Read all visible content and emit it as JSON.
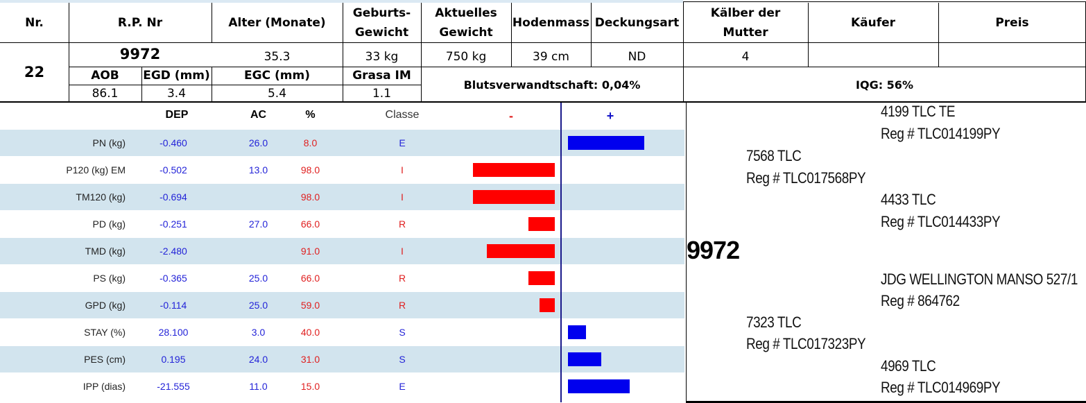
{
  "header": {
    "nr": "Nr.",
    "rp_nr": "R.P. Nr",
    "alter": "Alter (Monate)",
    "geburts": "Geburts-\nGewicht",
    "aktuelles": "Aktuelles\nGewicht",
    "hodenmass": "Hodenmass",
    "deckungsart": "Deckungsart",
    "kaelber": "Kälber der\nMutter",
    "kaeufer": "Käufer",
    "preis": "Preis"
  },
  "animal": {
    "nr": "22",
    "rp": "9972",
    "alter": "35.3",
    "geburtsgewicht": "33 kg",
    "aktuelles_gewicht": "750 kg",
    "hodenmass": "39 cm",
    "deckungsart": "ND",
    "kaelber": "4",
    "kaeufer": "",
    "preis": ""
  },
  "carcass": {
    "labels": {
      "aob": "AOB",
      "egd": "EGD (mm)",
      "egc": "EGC (mm)",
      "grasa": "Grasa IM"
    },
    "values": {
      "aob": "86.1",
      "egd": "3.4",
      "egc": "5.4",
      "grasa": "1.1"
    }
  },
  "blutsverwandtschaft": "Blutsverwandtschaft: 0,04%",
  "iqg": "IQG: 56%",
  "epd_headers": {
    "dep": "DEP",
    "ac": "AC",
    "pct": "%",
    "classe": "Classe",
    "minus": "-",
    "plus": "+"
  },
  "colors": {
    "negative_bar": "#ff0000",
    "positive_bar": "#0000ee",
    "row_shade": "#d2e4ee",
    "axis": "#1a1a8a"
  },
  "chart_data": {
    "type": "bar",
    "orientation": "horizontal",
    "note_units": "percentile-style deviation; bar length reflects distance from 50%",
    "rows": [
      {
        "trait": "PN (kg)",
        "dep": "-0.460",
        "ac": "26.0",
        "pct": "8.0",
        "classe": "E",
        "bar": 0.92
      },
      {
        "trait": "P120 (kg) EM",
        "dep": "-0.502",
        "ac": "13.0",
        "pct": "98.0",
        "classe": "I",
        "bar": -0.98
      },
      {
        "trait": "TM120 (kg)",
        "dep": "-0.694",
        "ac": "",
        "pct": "98.0",
        "classe": "I",
        "bar": -0.98
      },
      {
        "trait": "PD (kg)",
        "dep": "-0.251",
        "ac": "27.0",
        "pct": "66.0",
        "classe": "R",
        "bar": -0.32
      },
      {
        "trait": "TMD (kg)",
        "dep": "-2.480",
        "ac": "",
        "pct": "91.0",
        "classe": "I",
        "bar": -0.82
      },
      {
        "trait": "PS (kg)",
        "dep": "-0.365",
        "ac": "25.0",
        "pct": "66.0",
        "classe": "R",
        "bar": -0.32
      },
      {
        "trait": "GPD (kg)",
        "dep": "-0.114",
        "ac": "25.0",
        "pct": "59.0",
        "classe": "R",
        "bar": -0.18
      },
      {
        "trait": "STAY (%)",
        "dep": "28.100",
        "ac": "3.0",
        "pct": "40.0",
        "classe": "S",
        "bar": 0.22
      },
      {
        "trait": "PES (cm)",
        "dep": "0.195",
        "ac": "24.0",
        "pct": "31.0",
        "classe": "S",
        "bar": 0.4
      },
      {
        "trait": "IPP (dias)",
        "dep": "-21.555",
        "ac": "11.0",
        "pct": "15.0",
        "classe": "E",
        "bar": 0.74
      }
    ]
  },
  "pedigree": {
    "animal": "9972",
    "sire": {
      "name": "7568 TLC",
      "reg": "Reg # TLC017568PY"
    },
    "sire_sire": {
      "name": "4199 TLC TE",
      "reg": "Reg # TLC014199PY"
    },
    "sire_dam": {
      "name": "4433 TLC",
      "reg": "Reg # TLC014433PY"
    },
    "dam": {
      "name": "7323 TLC",
      "reg": "Reg # TLC017323PY"
    },
    "dam_sire": {
      "name": "JDG WELLINGTON MANSO 527/1",
      "reg": "Reg # 864762"
    },
    "dam_dam": {
      "name": "4969 TLC",
      "reg": "Reg # TLC014969PY"
    }
  }
}
